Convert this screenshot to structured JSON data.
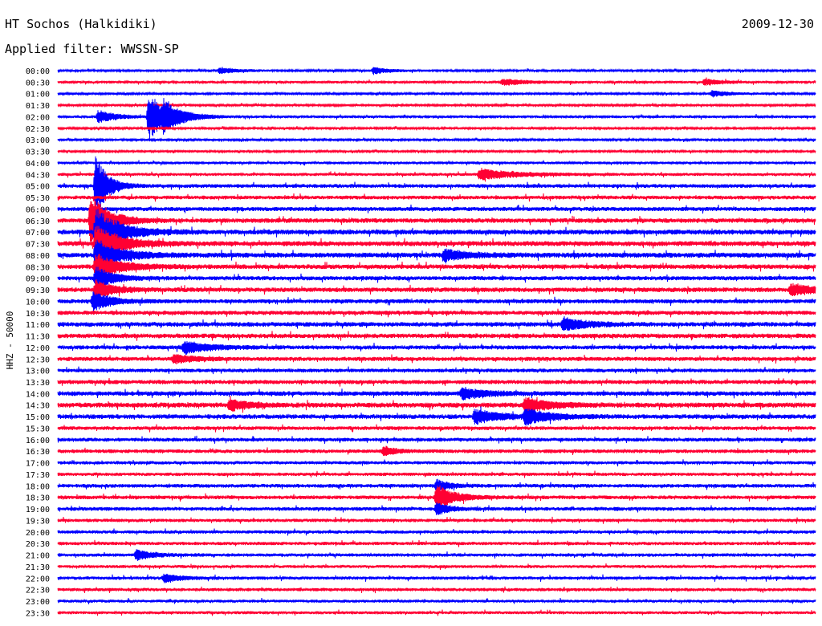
{
  "header": {
    "station": "HT Sochos (Halkidiki)",
    "date": "2009-12-30",
    "filter": "Applied filter: WWSSN-SP"
  },
  "chart_data": {
    "type": "line",
    "ylabel": "HHZ - 50000",
    "colors": [
      "#0000ff",
      "#ff0033"
    ],
    "rows": [
      "00:00",
      "00:30",
      "01:00",
      "01:30",
      "02:00",
      "02:30",
      "03:00",
      "03:30",
      "04:00",
      "04:30",
      "05:00",
      "05:30",
      "06:00",
      "06:30",
      "07:00",
      "07:30",
      "08:00",
      "08:30",
      "09:00",
      "09:30",
      "10:00",
      "10:30",
      "11:00",
      "11:30",
      "12:00",
      "12:30",
      "13:00",
      "13:30",
      "14:00",
      "14:30",
      "15:00",
      "15:30",
      "16:00",
      "16:30",
      "17:00",
      "17:30",
      "18:00",
      "18:30",
      "19:00",
      "19:30",
      "20:00",
      "20:30",
      "21:00",
      "21:30",
      "22:00",
      "22:30",
      "23:00",
      "23:30"
    ],
    "noise_level": [
      1,
      1.2,
      1,
      1,
      1.2,
      1,
      1,
      1,
      1.2,
      1.4,
      1.8,
      1.8,
      2,
      2.2,
      2.4,
      2.4,
      2.4,
      2.2,
      2,
      2.2,
      2,
      2,
      2.2,
      2.2,
      2,
      2,
      1.8,
      2,
      2.2,
      2.4,
      2.2,
      1.8,
      1.8,
      1.8,
      1.6,
      1.6,
      1.8,
      1.8,
      1.8,
      1.6,
      1.6,
      1.6,
      1.6,
      1.4,
      1.6,
      1.6,
      1.4,
      1.4
    ],
    "events": [
      {
        "row": 0,
        "minute": 6.4,
        "amp": 4,
        "dur": 1.5
      },
      {
        "row": 0,
        "minute": 12.5,
        "amp": 4,
        "dur": 1.5
      },
      {
        "row": 1,
        "minute": 17.6,
        "amp": 4,
        "dur": 2
      },
      {
        "row": 1,
        "minute": 25.6,
        "amp": 4,
        "dur": 1.5
      },
      {
        "row": 2,
        "minute": 25.9,
        "amp": 4,
        "dur": 1.5
      },
      {
        "row": 4,
        "minute": 1.6,
        "amp": 8,
        "dur": 1.5
      },
      {
        "row": 4,
        "minute": 3.6,
        "amp": 30,
        "dur": 1.5
      },
      {
        "row": 4,
        "minute": 4.2,
        "amp": 12,
        "dur": 1.5
      },
      {
        "row": 9,
        "minute": 16.7,
        "amp": 7,
        "dur": 3
      },
      {
        "row": 10,
        "minute": 1.5,
        "amp": 40,
        "dur": 1
      },
      {
        "row": 13,
        "minute": 1.3,
        "amp": 36,
        "dur": 1.5
      },
      {
        "row": 14,
        "minute": 1.5,
        "amp": 30,
        "dur": 2
      },
      {
        "row": 15,
        "minute": 1.5,
        "amp": 24,
        "dur": 2
      },
      {
        "row": 16,
        "minute": 1.5,
        "amp": 20,
        "dur": 2
      },
      {
        "row": 16,
        "minute": 15.3,
        "amp": 7,
        "dur": 2
      },
      {
        "row": 17,
        "minute": 1.5,
        "amp": 16,
        "dur": 2
      },
      {
        "row": 18,
        "minute": 1.5,
        "amp": 14,
        "dur": 1.5
      },
      {
        "row": 19,
        "minute": 1.5,
        "amp": 12,
        "dur": 1.5
      },
      {
        "row": 19,
        "minute": 29,
        "amp": 7,
        "dur": 2
      },
      {
        "row": 20,
        "minute": 1.4,
        "amp": 12,
        "dur": 1.5
      },
      {
        "row": 22,
        "minute": 20,
        "amp": 8,
        "dur": 2
      },
      {
        "row": 24,
        "minute": 5,
        "amp": 8,
        "dur": 2
      },
      {
        "row": 25,
        "minute": 4.6,
        "amp": 6,
        "dur": 1.5
      },
      {
        "row": 28,
        "minute": 16,
        "amp": 7,
        "dur": 2
      },
      {
        "row": 29,
        "minute": 6.8,
        "amp": 7,
        "dur": 1.5
      },
      {
        "row": 29,
        "minute": 18.5,
        "amp": 9,
        "dur": 2
      },
      {
        "row": 30,
        "minute": 16.5,
        "amp": 9,
        "dur": 2
      },
      {
        "row": 30,
        "minute": 18.5,
        "amp": 10,
        "dur": 2
      },
      {
        "row": 33,
        "minute": 12.9,
        "amp": 6,
        "dur": 1
      },
      {
        "row": 36,
        "minute": 15,
        "amp": 8,
        "dur": 1
      },
      {
        "row": 37,
        "minute": 15,
        "amp": 16,
        "dur": 1.5
      },
      {
        "row": 38,
        "minute": 15,
        "amp": 8,
        "dur": 1
      },
      {
        "row": 42,
        "minute": 3.1,
        "amp": 6,
        "dur": 1.5
      },
      {
        "row": 44,
        "minute": 4.2,
        "amp": 5,
        "dur": 1.5
      }
    ]
  }
}
